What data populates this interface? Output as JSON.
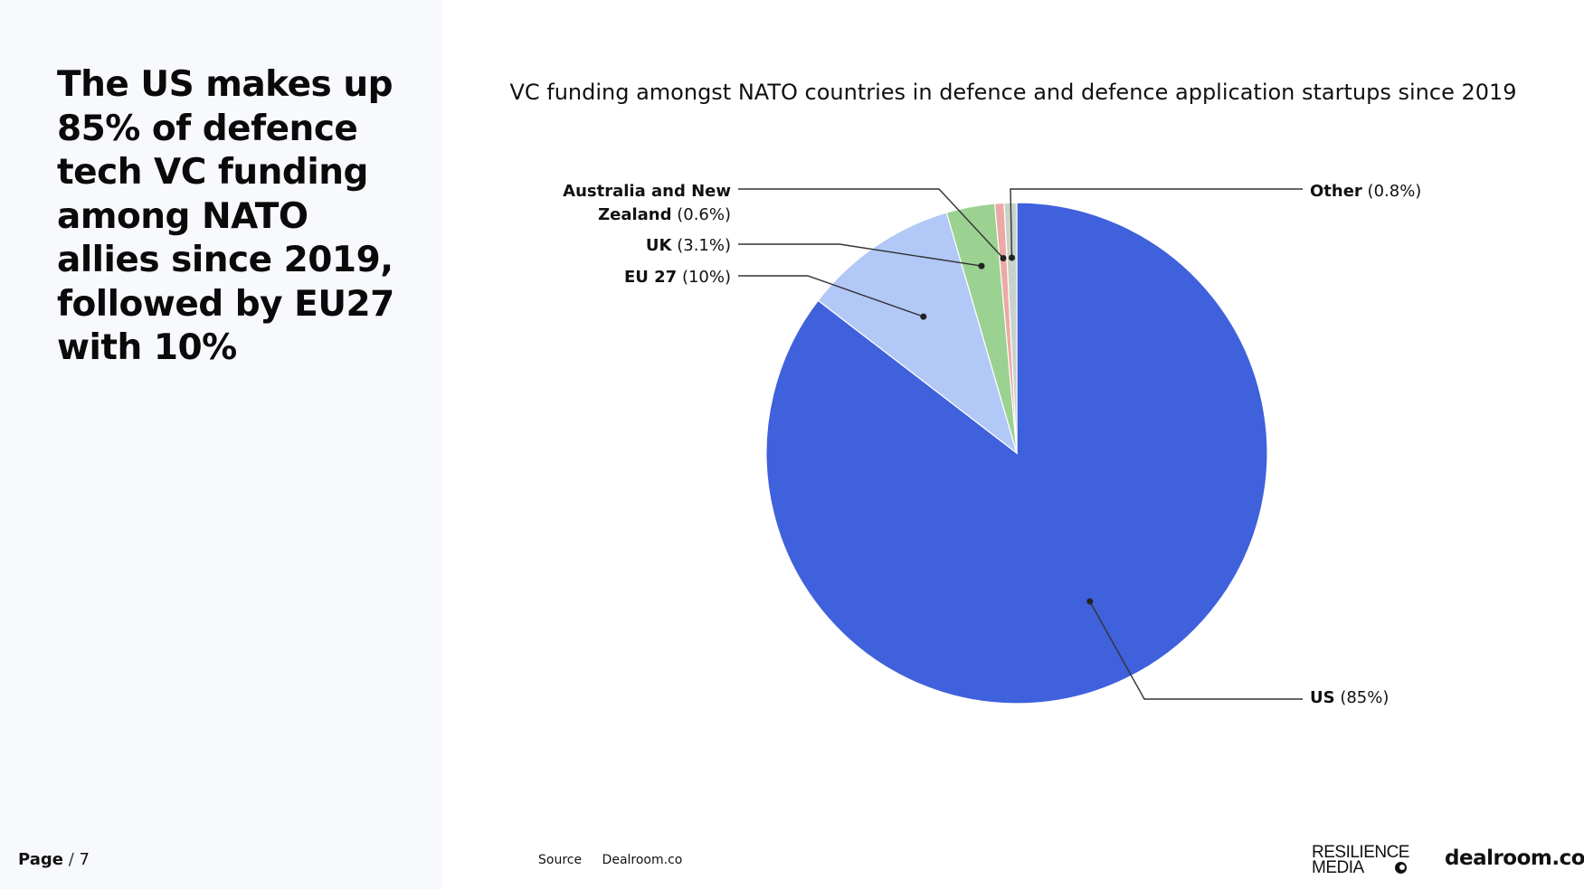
{
  "headline": "The US makes up 85% of defence tech VC funding among NATO allies since 2019, followed by EU27 with 10%",
  "page": {
    "label": "Page",
    "separator": "/",
    "number": "7"
  },
  "source": {
    "label": "Source",
    "value": "Dealroom.co"
  },
  "logos": {
    "resilience_line1": "RESILIENCE",
    "resilience_line2": "MEDIA",
    "dealroom": "dealroom.co"
  },
  "colors": {
    "left_panel_bg": "#f7f9fd",
    "us": "#4061dc",
    "eu27": "#b2c8f7",
    "uk": "#9bd191",
    "anz": "#eba9a5",
    "other": "#c9d2c9"
  },
  "chart_data": {
    "type": "pie",
    "title": "VC funding amongst NATO countries in defence and defence application startups since 2019",
    "slices": [
      {
        "name": "US",
        "value": 85,
        "label_value": "(85%)",
        "color": "#4061dc"
      },
      {
        "name": "EU 27",
        "value": 10,
        "label_value": "(10%)",
        "color": "#b2c8f7"
      },
      {
        "name": "UK",
        "value": 3.1,
        "label_value": "(3.1%)",
        "color": "#9bd191"
      },
      {
        "name": "Australia and New Zealand",
        "name_line1": "Australia and New",
        "name_line2": "Zealand",
        "value": 0.6,
        "label_value": "(0.6%)",
        "color": "#eba9a5"
      },
      {
        "name": "Other",
        "value": 0.8,
        "label_value": "(0.8%)",
        "color": "#c9d2c9"
      }
    ]
  }
}
